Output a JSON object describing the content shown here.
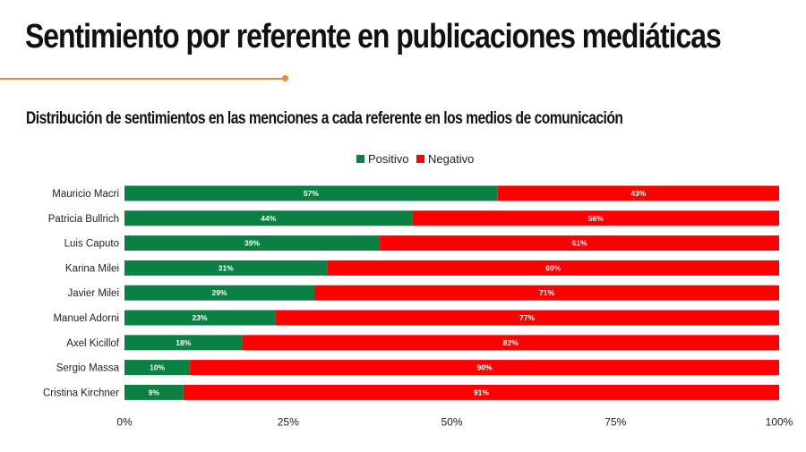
{
  "title": "Sentimiento por referente en publicaciones mediáticas",
  "subtitle": "Distribución de sentimientos en las menciones a cada referente en los medios de comunicación",
  "colors": {
    "positive": "#0b8043",
    "negative": "#ff0000",
    "accent": "#e8893a"
  },
  "chart_data": {
    "type": "bar",
    "orientation": "horizontal",
    "stacked": "percent",
    "legend_position": "top",
    "grid": false,
    "categories": [
      "Mauricio Macri",
      "Patricia Bullrich",
      "Luis Caputo",
      "Karina Milei",
      "Javier Milei",
      "Manuel Adorni",
      "Axel Kicillof",
      "Sergio Massa",
      "Cristina Kirchner"
    ],
    "series": [
      {
        "name": "Positivo",
        "values": [
          57,
          44,
          39,
          31,
          29,
          23,
          18,
          10,
          9
        ],
        "labels": [
          "57%",
          "44%",
          "39%",
          "31%",
          "29%",
          "23%",
          "18%",
          "10%",
          "9%"
        ]
      },
      {
        "name": "Negativo",
        "values": [
          43,
          56,
          61,
          69,
          71,
          77,
          82,
          90,
          91
        ],
        "labels": [
          "43%",
          "56%",
          "61%",
          "69%",
          "71%",
          "77%",
          "82%",
          "90%",
          "91%"
        ]
      }
    ],
    "xlim": [
      0,
      100
    ],
    "xticks": [
      0,
      25,
      50,
      75,
      100
    ],
    "xtick_labels": [
      "0%",
      "25%",
      "50%",
      "75%",
      "100%"
    ]
  }
}
